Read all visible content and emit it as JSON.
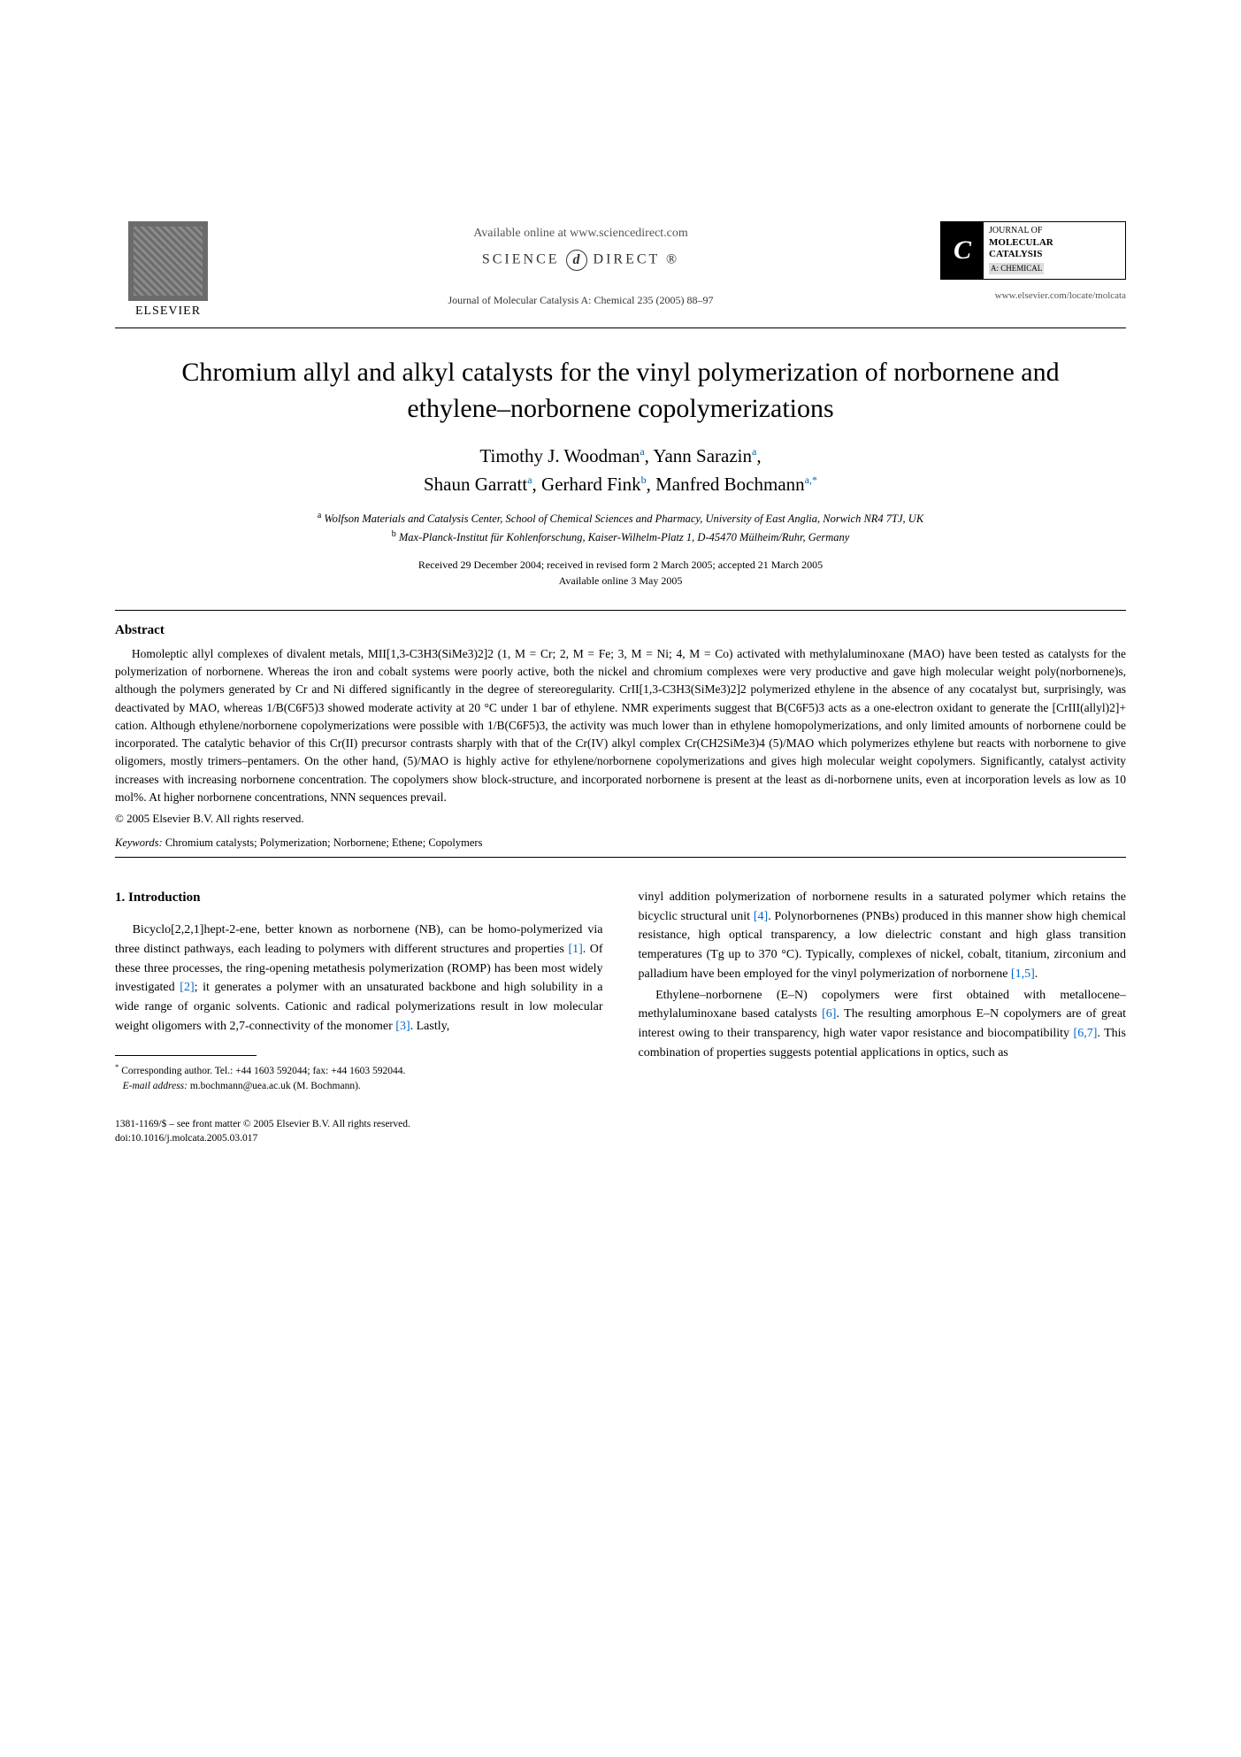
{
  "header": {
    "publisher_name": "ELSEVIER",
    "available_online": "Available online at www.sciencedirect.com",
    "science_direct": "SCIENCE",
    "science_direct2": "DIRECT",
    "journal_ref": "Journal of Molecular Catalysis A: Chemical 235 (2005) 88–97",
    "journal_box": {
      "line1": "JOURNAL OF",
      "line2": "MOLECULAR",
      "line3": "CATALYSIS",
      "line4": "A: CHEMICAL"
    },
    "journal_url": "www.elsevier.com/locate/molcata"
  },
  "title": "Chromium allyl and alkyl catalysts for the vinyl polymerization of norbornene and ethylene–norbornene copolymerizations",
  "authors_line1": "Timothy J. Woodman",
  "authors_sup1": "a",
  "authors_sep1": ", ",
  "authors_line1b": "Yann Sarazin",
  "authors_sup1b": "a",
  "authors_sep1b": ",",
  "authors_line2a": "Shaun Garratt",
  "authors_sup2a": "a",
  "authors_sep2a": ", ",
  "authors_line2b": "Gerhard Fink",
  "authors_sup2b": "b",
  "authors_sep2b": ", ",
  "authors_line2c": "Manfred Bochmann",
  "authors_sup2c": "a,",
  "authors_star": "*",
  "affiliations": {
    "a": "Wolfson Materials and Catalysis Center, School of Chemical Sciences and Pharmacy, University of East Anglia, Norwich NR4 7TJ, UK",
    "b": "Max-Planck-Institut für Kohlenforschung, Kaiser-Wilhelm-Platz 1, D-45470 Mülheim/Ruhr, Germany"
  },
  "dates": {
    "received": "Received 29 December 2004; received in revised form 2 March 2005; accepted 21 March 2005",
    "online": "Available online 3 May 2005"
  },
  "abstract_heading": "Abstract",
  "abstract_text": "Homoleptic allyl complexes of divalent metals, MII[1,3-C3H3(SiMe3)2]2 (1, M = Cr; 2, M = Fe; 3, M = Ni; 4, M = Co) activated with methylaluminoxane (MAO) have been tested as catalysts for the polymerization of norbornene. Whereas the iron and cobalt systems were poorly active, both the nickel and chromium complexes were very productive and gave high molecular weight poly(norbornene)s, although the polymers generated by Cr and Ni differed significantly in the degree of stereoregularity. CrII[1,3-C3H3(SiMe3)2]2 polymerized ethylene in the absence of any cocatalyst but, surprisingly, was deactivated by MAO, whereas 1/B(C6F5)3 showed moderate activity at 20 °C under 1 bar of ethylene. NMR experiments suggest that B(C6F5)3 acts as a one-electron oxidant to generate the [CrIII(allyl)2]+ cation. Although ethylene/norbornene copolymerizations were possible with 1/B(C6F5)3, the activity was much lower than in ethylene homopolymerizations, and only limited amounts of norbornene could be incorporated. The catalytic behavior of this Cr(II) precursor contrasts sharply with that of the Cr(IV) alkyl complex Cr(CH2SiMe3)4 (5)/MAO which polymerizes ethylene but reacts with norbornene to give oligomers, mostly trimers–pentamers. On the other hand, (5)/MAO is highly active for ethylene/norbornene copolymerizations and gives high molecular weight copolymers. Significantly, catalyst activity increases with increasing norbornene concentration. The copolymers show block-structure, and incorporated norbornene is present at the least as di-norbornene units, even at incorporation levels as low as 10 mol%. At higher norbornene concentrations, NNN sequences prevail.",
  "copyright": "© 2005 Elsevier B.V. All rights reserved.",
  "keywords_label": "Keywords:",
  "keywords_text": "Chromium catalysts; Polymerization; Norbornene; Ethene; Copolymers",
  "intro_heading": "1. Introduction",
  "intro_col1_p1a": "Bicyclo[2,2,1]hept-2-ene, better known as norbornene (NB), can be homo-polymerized via three distinct pathways, each leading to polymers with different structures and properties ",
  "intro_ref1": "[1]",
  "intro_col1_p1b": ". Of these three processes, the ring-opening metathesis polymerization (ROMP) has been most widely investigated ",
  "intro_ref2": "[2]",
  "intro_col1_p1c": "; it generates a polymer with an unsaturated backbone and high solubility in a wide range of organic solvents. Cationic and radical polymerizations result in low molecular weight oligomers with 2,7-connectivity of the monomer ",
  "intro_ref3": "[3]",
  "intro_col1_p1d": ". Lastly,",
  "intro_col2_p1a": "vinyl addition polymerization of norbornene results in a saturated polymer which retains the bicyclic structural unit ",
  "intro_ref4": "[4]",
  "intro_col2_p1b": ". Polynorbornenes (PNBs) produced in this manner show high chemical resistance, high optical transparency, a low dielectric constant and high glass transition temperatures (Tg up to 370 °C). Typically, complexes of nickel, cobalt, titanium, zirconium and palladium have been employed for the vinyl polymerization of norbornene ",
  "intro_ref5": "[1,5]",
  "intro_col2_p1c": ".",
  "intro_col2_p2a": "Ethylene–norbornene (E–N) copolymers were first obtained with metallocene–methylaluminoxane based catalysts ",
  "intro_ref6": "[6]",
  "intro_col2_p2b": ". The resulting amorphous E–N copolymers are of great interest owing to their transparency, high water vapor resistance and biocompatibility ",
  "intro_ref7": "[6,7]",
  "intro_col2_p2c": ". This combination of properties suggests potential applications in optics, such as",
  "footnote": {
    "corr": "Corresponding author. Tel.: +44 1603 592044; fax: +44 1603 592044.",
    "email_label": "E-mail address:",
    "email": "m.bochmann@uea.ac.uk (M. Bochmann)."
  },
  "doi": {
    "line1": "1381-1169/$ – see front matter © 2005 Elsevier B.V. All rights reserved.",
    "line2": "doi:10.1016/j.molcata.2005.03.017"
  }
}
